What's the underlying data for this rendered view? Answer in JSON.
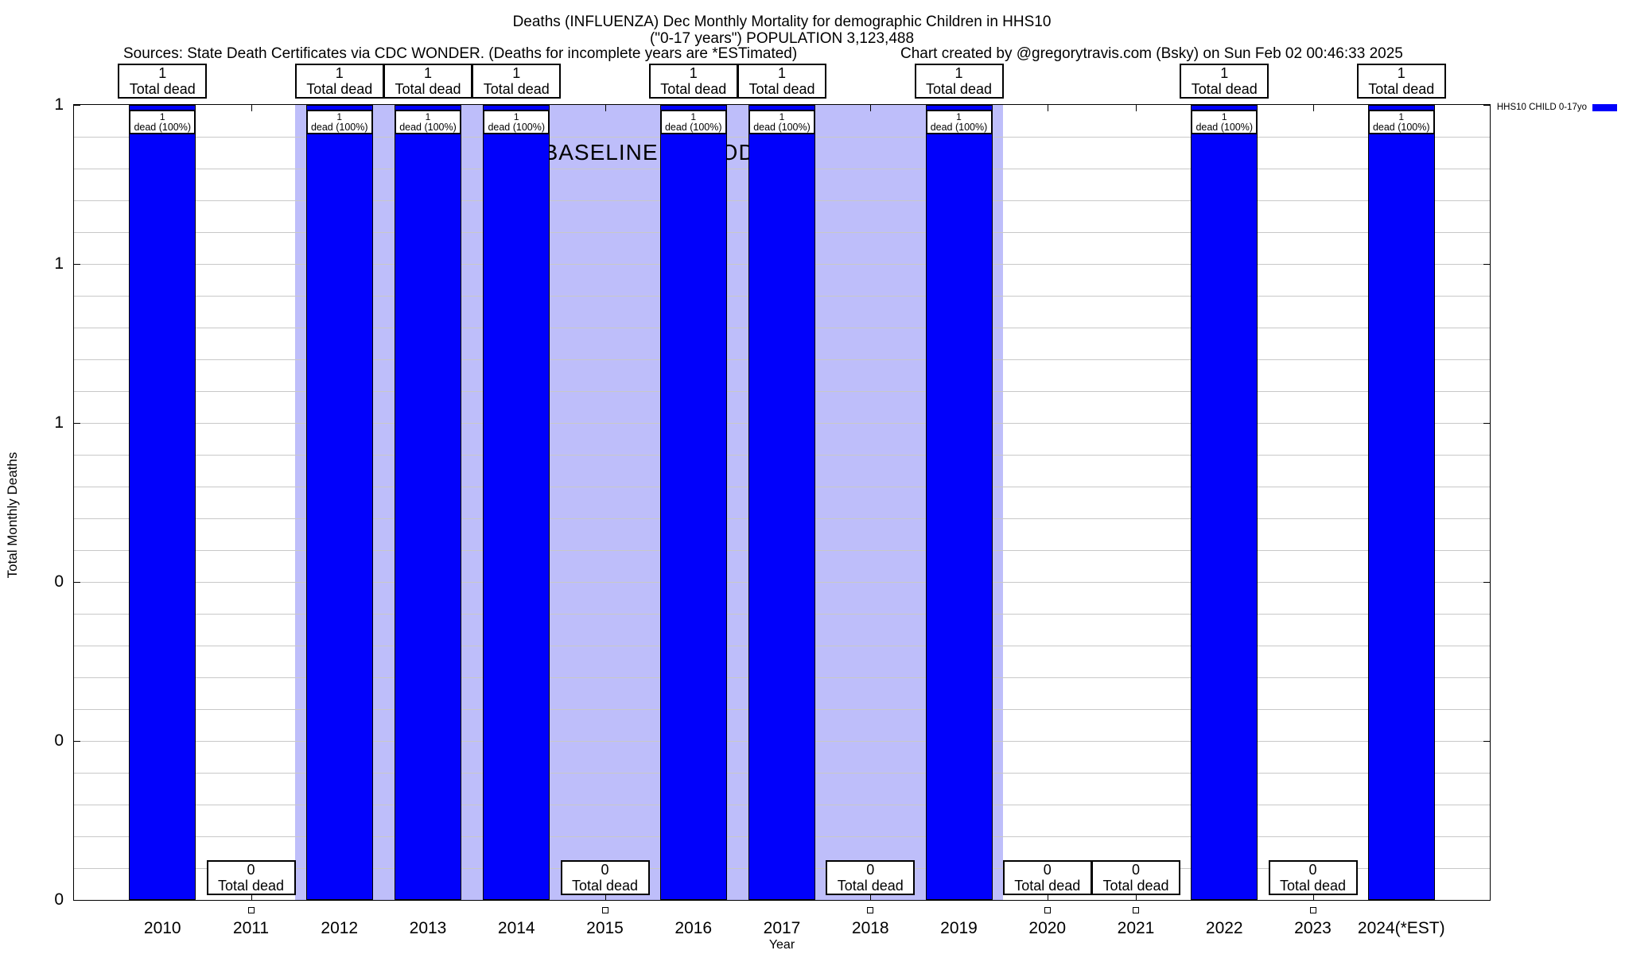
{
  "header": {
    "title_line1": "Deaths (INFLUENZA) Dec Monthly Mortality for demographic Children in HHS10",
    "title_line2": "(\"0-17 years\") POPULATION 3,123,488",
    "sources": "Sources: State Death Certificates via CDC WONDER. (Deaths for incomplete years are *ESTimated)",
    "credit": "Chart created by @gregorytravis.com (Bsky) on Sun Feb 02 00:46:33 2025"
  },
  "legend": {
    "label": "HHS10 CHILD 0-17yo",
    "swatch_color": "#0101fb"
  },
  "colors": {
    "bar": "#0101fb",
    "baseline_band": "#bebefa",
    "gridline": "#c8c8c8"
  },
  "chart_data": {
    "type": "bar",
    "title": "Deaths (INFLUENZA) Dec Monthly Mortality for demographic Children in HHS10",
    "subtitle": "(\"0-17 years\") POPULATION 3,123,488",
    "xlabel": "Year",
    "ylabel": "Total Monthly Deaths",
    "series_name": "HHS10 CHILD 0-17yo",
    "categories": [
      "2010",
      "2011",
      "2012",
      "2013",
      "2014",
      "2015",
      "2016",
      "2017",
      "2018",
      "2019",
      "2020",
      "2021",
      "2022",
      "2023",
      "2024(*EST)"
    ],
    "values": [
      1,
      0,
      1,
      1,
      1,
      0,
      1,
      1,
      0,
      1,
      0,
      0,
      1,
      0,
      1
    ],
    "ylim": [
      0,
      1
    ],
    "y_tick_labels_top_to_bottom": [
      "1",
      "1",
      "1",
      "0",
      "0",
      "0"
    ],
    "grid": "on",
    "legend_position": "top-right",
    "bar_sub_label": "dead (100%)",
    "total_label": "Total dead",
    "baseline": {
      "label": "BASELINE PERIOD",
      "start_year": 2011.5,
      "end_year": 2019.5
    }
  }
}
